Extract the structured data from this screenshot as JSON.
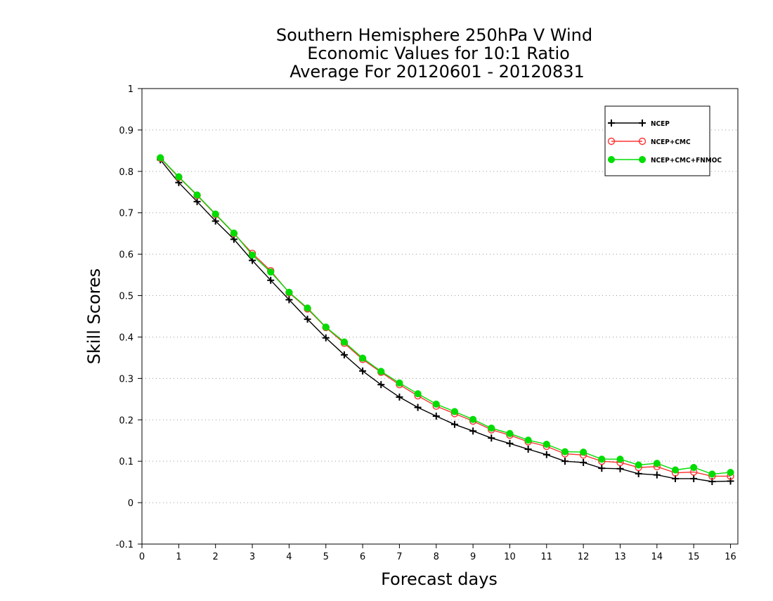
{
  "chart_data": {
    "type": "line",
    "title_lines": [
      "Southern Hemisphere 250hPa V Wind",
      "Economic Values for 10:1 Ratio",
      "Average For 20120601 - 20120831"
    ],
    "xlabel": "Forecast days",
    "ylabel": "Skill Scores",
    "xlim": [
      0,
      16.2
    ],
    "ylim": [
      -0.1,
      1
    ],
    "x_ticks": [
      0,
      1,
      2,
      3,
      4,
      5,
      6,
      7,
      8,
      9,
      10,
      11,
      12,
      13,
      14,
      15,
      16
    ],
    "y_ticks": [
      -0.1,
      0,
      0.1,
      0.2,
      0.3,
      0.4,
      0.5,
      0.6,
      0.7,
      0.8,
      0.9,
      1
    ],
    "y_tick_labels": [
      "-0.1",
      "0",
      "0.1",
      "0.2",
      "0.3",
      "0.4",
      "0.5",
      "0.6",
      "0.7",
      "0.8",
      "0.9",
      "1"
    ],
    "grid": "dotted horizontal",
    "legend_position": "top-right",
    "x": [
      0.5,
      1.0,
      1.5,
      2.0,
      2.5,
      3.0,
      3.5,
      4.0,
      4.5,
      5.0,
      5.5,
      6.0,
      6.5,
      7.0,
      7.5,
      8.0,
      8.5,
      9.0,
      9.5,
      10.0,
      10.5,
      11.0,
      11.5,
      12.0,
      12.5,
      13.0,
      13.5,
      14.0,
      14.5,
      15.0,
      15.5,
      16.0
    ],
    "series": [
      {
        "name": "NCEP",
        "color": "#000000",
        "marker": "plus",
        "values": [
          0.828,
          0.773,
          0.727,
          0.68,
          0.636,
          0.585,
          0.537,
          0.49,
          0.443,
          0.398,
          0.357,
          0.318,
          0.285,
          0.255,
          0.23,
          0.209,
          0.189,
          0.173,
          0.156,
          0.143,
          0.129,
          0.116,
          0.1,
          0.097,
          0.083,
          0.082,
          0.07,
          0.067,
          0.058,
          0.058,
          0.051,
          0.052
        ]
      },
      {
        "name": "NCEP+CMC",
        "color": "#ff3333",
        "marker": "open-circle",
        "values": [
          0.832,
          0.786,
          0.742,
          0.696,
          0.65,
          0.602,
          0.56,
          0.507,
          0.468,
          0.423,
          0.385,
          0.346,
          0.315,
          0.285,
          0.258,
          0.233,
          0.215,
          0.197,
          0.176,
          0.163,
          0.147,
          0.136,
          0.118,
          0.115,
          0.1,
          0.097,
          0.085,
          0.087,
          0.072,
          0.074,
          0.064,
          0.064
        ]
      },
      {
        "name": "NCEP+CMC+FNMOC",
        "color": "#00dd00",
        "marker": "filled-circle",
        "values": [
          0.833,
          0.787,
          0.743,
          0.697,
          0.651,
          0.598,
          0.557,
          0.508,
          0.47,
          0.424,
          0.388,
          0.349,
          0.317,
          0.289,
          0.263,
          0.238,
          0.22,
          0.201,
          0.18,
          0.167,
          0.151,
          0.141,
          0.123,
          0.122,
          0.105,
          0.105,
          0.091,
          0.095,
          0.079,
          0.085,
          0.069,
          0.073
        ]
      }
    ]
  }
}
